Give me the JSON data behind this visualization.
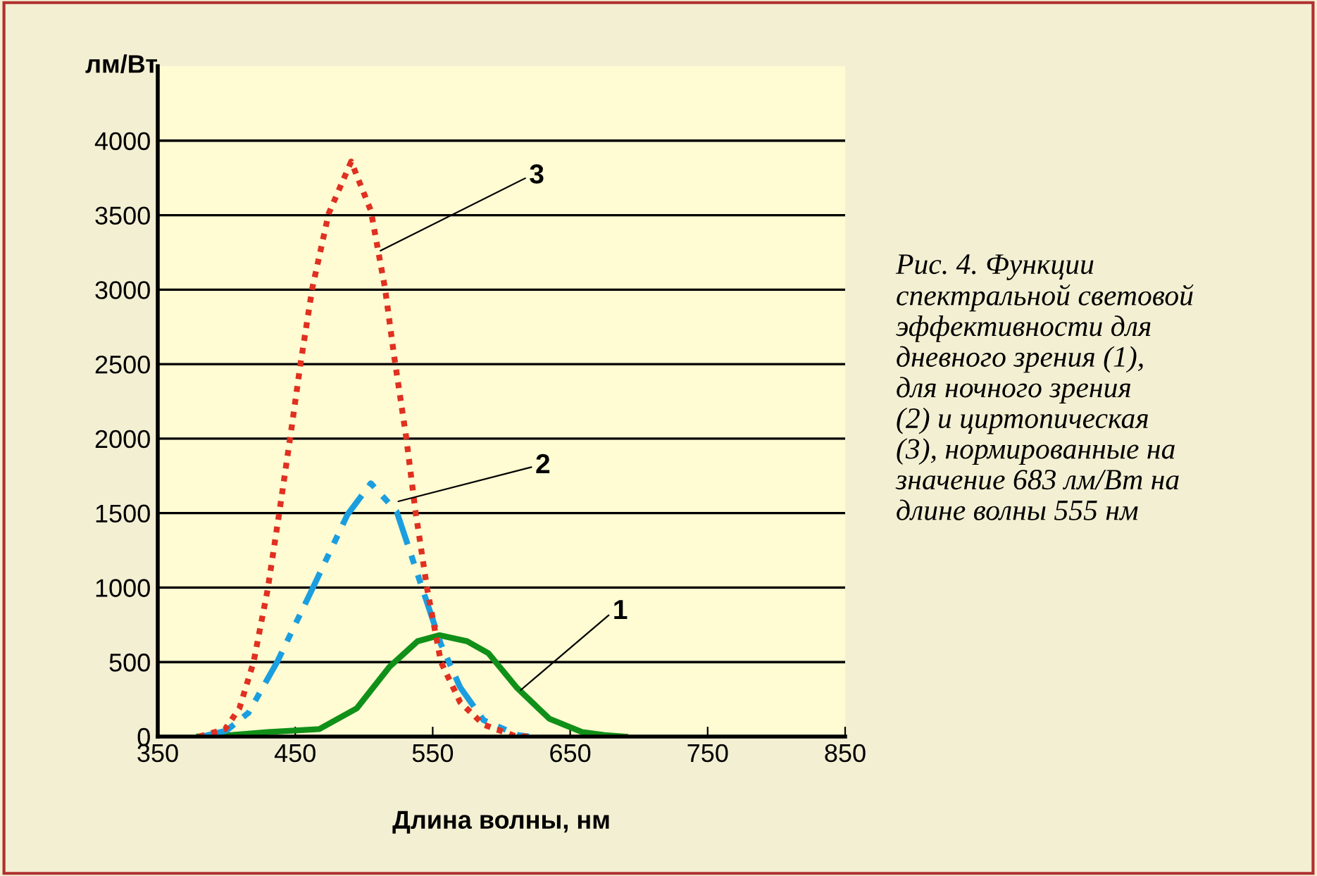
{
  "chart_data": {
    "type": "line",
    "xlabel": "Длина волны, нм",
    "ylabel": "лм/Вт",
    "xlim": [
      350,
      850
    ],
    "xticks": [
      350,
      450,
      550,
      650,
      750,
      850
    ],
    "ylim": [
      0,
      4500
    ],
    "yticks": [
      0,
      500,
      1000,
      1500,
      2000,
      2500,
      3000,
      3500,
      4000
    ],
    "grid": "y",
    "legend": false,
    "marker": "none",
    "series": [
      {
        "color": "#109018",
        "line_style": "solid",
        "x": [
          380,
          390.7,
          430,
          467.5,
          494.8,
          518.7,
          539,
          555,
          575,
          590.5,
          611,
          634.8,
          658.7,
          675,
          690
        ],
        "values": [
          0,
          0,
          30,
          50,
          190,
          470,
          640,
          680,
          640,
          560,
          330,
          120,
          30,
          10,
          0
        ]
      },
      {
        "color": "#1a9ee0",
        "line_style": "dashdot",
        "x": [
          382,
          400,
          416,
          436.8,
          462.4,
          488,
          505,
          523.8,
          542.6,
          556,
          570,
          587,
          612,
          620
        ],
        "values": [
          0,
          40,
          160,
          500,
          990,
          1490,
          1700,
          1510,
          990,
          620,
          330,
          110,
          10,
          0
        ]
      },
      {
        "color": "#e03020",
        "line_style": "dotted",
        "x": [
          380,
          399,
          409.4,
          419.7,
          430,
          438.5,
          447,
          453.8,
          462.4,
          474.3,
          490.7,
          505,
          515.3,
          522,
          530.7,
          537.5,
          546,
          556,
          570,
          587,
          611,
          620
        ],
        "values": [
          0,
          50,
          190,
          500,
          990,
          1510,
          2050,
          2500,
          3010,
          3510,
          3860,
          3530,
          3010,
          2550,
          2010,
          1510,
          990,
          500,
          230,
          80,
          0,
          0
        ]
      }
    ],
    "annotations": [
      {
        "text": "1",
        "x": 614,
        "y": 312
      },
      {
        "text": "2",
        "x": 525,
        "y": 1579
      },
      {
        "text": "3",
        "x": 512,
        "y": 3262
      },
      "Рис. 4. Функции\nспектральной световой\nэффективности для\nдневного зрения (1),\nдля ночного зрения\n(2) и циртопическая\n(3), нормированные на\nзначение 683 лм/Вт на\nдлине волны 555 нм"
    ]
  }
}
